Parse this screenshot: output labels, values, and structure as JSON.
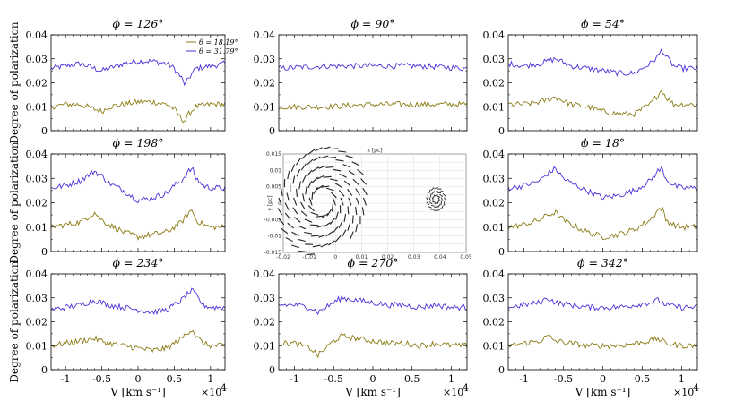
{
  "figure": {
    "ylabel": "Degree of polarization",
    "xlabel": "V [km s⁻¹]",
    "x_exponent": "×10",
    "x_exponent_power": "4",
    "colors": {
      "high": "#4b2fd8",
      "low": "#8b7a13"
    }
  },
  "chart_data": [
    {
      "type": "line",
      "title": "ϕ = 126°",
      "xlabel": "V [km s⁻¹]",
      "ylabel": "Degree of polarization",
      "xlim": [
        -12000,
        12000
      ],
      "ylim": [
        0,
        0.04
      ],
      "xticks": [
        "-1",
        "-0.5",
        "0",
        "0.5",
        "1"
      ],
      "yticks": [
        "0",
        "0.01",
        "0.02",
        "0.03",
        "0.04"
      ],
      "legend": [
        "θ = 18.19°",
        "θ = 31.79°"
      ],
      "x": [
        -12000,
        -10000,
        -8000,
        -6000,
        -5000,
        -4000,
        -2000,
        0,
        2000,
        4000,
        5000,
        5500,
        6000,
        6500,
        7000,
        8000,
        10000,
        12000
      ],
      "series": [
        {
          "name": "θ = 31.79°",
          "values": [
            0.026,
            0.027,
            0.028,
            0.026,
            0.025,
            0.026,
            0.028,
            0.029,
            0.029,
            0.028,
            0.026,
            0.024,
            0.022,
            0.019,
            0.022,
            0.026,
            0.027,
            0.028
          ]
        },
        {
          "name": "θ = 18.19°",
          "values": [
            0.01,
            0.011,
            0.011,
            0.009,
            0.008,
            0.01,
            0.011,
            0.012,
            0.012,
            0.011,
            0.009,
            0.007,
            0.005,
            0.004,
            0.007,
            0.01,
            0.011,
            0.011
          ]
        }
      ]
    },
    {
      "type": "line",
      "title": "ϕ = 90°",
      "xlim": [
        -12000,
        12000
      ],
      "ylim": [
        0,
        0.04
      ],
      "xticks": [
        "-1",
        "-0.5",
        "0",
        "0.5",
        "1"
      ],
      "yticks": [
        "0",
        "0.01",
        "0.02",
        "0.03",
        "0.04"
      ],
      "x": [
        -12000,
        -6000,
        0,
        6000,
        12000
      ],
      "series": [
        {
          "name": "θ = 31.79°",
          "values": [
            0.026,
            0.027,
            0.027,
            0.027,
            0.026
          ]
        },
        {
          "name": "θ = 18.19°",
          "values": [
            0.01,
            0.01,
            0.011,
            0.011,
            0.011
          ]
        }
      ]
    },
    {
      "type": "line",
      "title": "ϕ = 54°",
      "xlim": [
        -12000,
        12000
      ],
      "ylim": [
        0,
        0.04
      ],
      "xticks": [
        "-1",
        "-0.5",
        "0",
        "0.5",
        "1"
      ],
      "yticks": [
        "0",
        "0.01",
        "0.02",
        "0.03",
        "0.04"
      ],
      "x": [
        -12000,
        -10000,
        -8000,
        -6000,
        -4000,
        -2000,
        0,
        2000,
        4000,
        5000,
        6000,
        7000,
        7500,
        8000,
        9000,
        10000,
        12000
      ],
      "series": [
        {
          "name": "θ = 31.79°",
          "values": [
            0.028,
            0.027,
            0.028,
            0.03,
            0.027,
            0.026,
            0.025,
            0.024,
            0.024,
            0.026,
            0.028,
            0.031,
            0.034,
            0.031,
            0.027,
            0.026,
            0.026
          ]
        },
        {
          "name": "θ = 18.19°",
          "values": [
            0.011,
            0.011,
            0.012,
            0.014,
            0.011,
            0.01,
            0.008,
            0.007,
            0.007,
            0.009,
            0.011,
            0.015,
            0.017,
            0.014,
            0.011,
            0.011,
            0.011
          ]
        }
      ]
    },
    {
      "type": "line",
      "title": "ϕ = 198°",
      "xlim": [
        -12000,
        12000
      ],
      "ylim": [
        0,
        0.04
      ],
      "xticks": [
        "-1",
        "-0.5",
        "0",
        "0.5",
        "1"
      ],
      "yticks": [
        "0",
        "0.01",
        "0.02",
        "0.03",
        "0.04"
      ],
      "x": [
        -12000,
        -10000,
        -8000,
        -7000,
        -6000,
        -5000,
        -4000,
        -2000,
        0,
        2000,
        4000,
        5000,
        6000,
        7000,
        7500,
        8000,
        9000,
        10000,
        12000
      ],
      "series": [
        {
          "name": "θ = 31.79°",
          "values": [
            0.026,
            0.027,
            0.029,
            0.031,
            0.033,
            0.031,
            0.028,
            0.025,
            0.021,
            0.022,
            0.024,
            0.027,
            0.029,
            0.033,
            0.034,
            0.03,
            0.027,
            0.026,
            0.026
          ]
        },
        {
          "name": "θ = 18.19°",
          "values": [
            0.01,
            0.011,
            0.012,
            0.014,
            0.016,
            0.013,
            0.011,
            0.008,
            0.006,
            0.007,
            0.008,
            0.01,
            0.012,
            0.016,
            0.017,
            0.013,
            0.011,
            0.01,
            0.01
          ]
        }
      ]
    },
    {
      "type": "scatter",
      "title": "",
      "xlabel": "x [pc]",
      "ylabel": "y [pc]",
      "xlim": [
        -0.02,
        0.05
      ],
      "ylim": [
        -0.015,
        0.015
      ],
      "xticks": [
        "-0.02",
        "-0.01",
        "0",
        "0.01",
        "0.02",
        "0.03",
        "0.04",
        "0.05"
      ],
      "yticks": [
        "0.015",
        "0.01",
        "0.005",
        "0",
        "-0.005",
        "-0.01",
        "-0.015"
      ]
    },
    {
      "type": "line",
      "title": "ϕ = 18°",
      "xlim": [
        -12000,
        12000
      ],
      "ylim": [
        0,
        0.04
      ],
      "xticks": [
        "-1",
        "-0.5",
        "0",
        "0.5",
        "1"
      ],
      "yticks": [
        "0",
        "0.01",
        "0.02",
        "0.03",
        "0.04"
      ],
      "x": [
        -12000,
        -10000,
        -8000,
        -7000,
        -6000,
        -5000,
        -4000,
        -2000,
        0,
        2000,
        4000,
        5000,
        6000,
        7000,
        7500,
        8000,
        9000,
        10000,
        12000
      ],
      "series": [
        {
          "name": "θ = 31.79°",
          "values": [
            0.026,
            0.027,
            0.029,
            0.032,
            0.034,
            0.03,
            0.028,
            0.025,
            0.022,
            0.023,
            0.025,
            0.027,
            0.029,
            0.033,
            0.034,
            0.03,
            0.027,
            0.026,
            0.026
          ]
        },
        {
          "name": "θ = 18.19°",
          "values": [
            0.01,
            0.011,
            0.013,
            0.015,
            0.016,
            0.013,
            0.011,
            0.008,
            0.006,
            0.007,
            0.009,
            0.011,
            0.013,
            0.017,
            0.018,
            0.013,
            0.011,
            0.01,
            0.01
          ]
        }
      ]
    },
    {
      "type": "line",
      "title": "ϕ = 234°",
      "xlim": [
        -12000,
        12000
      ],
      "ylim": [
        0,
        0.04
      ],
      "xticks": [
        "-1",
        "-0.5",
        "0",
        "0.5",
        "1"
      ],
      "yticks": [
        "0",
        "0.01",
        "0.02",
        "0.03",
        "0.04"
      ],
      "x": [
        -12000,
        -10000,
        -8000,
        -6000,
        -5000,
        -4000,
        -2000,
        0,
        2000,
        4000,
        5000,
        6000,
        7000,
        7500,
        8000,
        9000,
        10000,
        12000
      ],
      "series": [
        {
          "name": "θ = 31.79°",
          "values": [
            0.025,
            0.026,
            0.027,
            0.029,
            0.028,
            0.027,
            0.026,
            0.025,
            0.024,
            0.025,
            0.027,
            0.029,
            0.032,
            0.033,
            0.031,
            0.027,
            0.026,
            0.026
          ]
        },
        {
          "name": "θ = 18.19°",
          "values": [
            0.01,
            0.011,
            0.012,
            0.013,
            0.012,
            0.011,
            0.01,
            0.009,
            0.008,
            0.009,
            0.011,
            0.013,
            0.016,
            0.017,
            0.014,
            0.011,
            0.01,
            0.01
          ]
        }
      ]
    },
    {
      "type": "line",
      "title": "ϕ = 270°",
      "xlim": [
        -12000,
        12000
      ],
      "ylim": [
        0,
        0.04
      ],
      "xticks": [
        "-1",
        "-0.5",
        "0",
        "0.5",
        "1"
      ],
      "yticks": [
        "0",
        "0.01",
        "0.02",
        "0.03",
        "0.04"
      ],
      "x": [
        -12000,
        -10000,
        -8000,
        -7000,
        -6000,
        -5000,
        -4000,
        -2000,
        0,
        2000,
        4000,
        6000,
        8000,
        10000,
        12000
      ],
      "series": [
        {
          "name": "θ = 31.79°",
          "values": [
            0.027,
            0.027,
            0.026,
            0.024,
            0.026,
            0.028,
            0.03,
            0.029,
            0.028,
            0.027,
            0.027,
            0.026,
            0.027,
            0.026,
            0.026
          ]
        },
        {
          "name": "θ = 18.19°",
          "values": [
            0.011,
            0.011,
            0.009,
            0.006,
            0.009,
            0.012,
            0.014,
            0.013,
            0.012,
            0.011,
            0.011,
            0.01,
            0.011,
            0.01,
            0.01
          ]
        }
      ]
    },
    {
      "type": "line",
      "title": "ϕ = 342°",
      "xlim": [
        -12000,
        12000
      ],
      "ylim": [
        0,
        0.04
      ],
      "xticks": [
        "-1",
        "-0.5",
        "0",
        "0.5",
        "1"
      ],
      "yticks": [
        "0",
        "0.01",
        "0.02",
        "0.03",
        "0.04"
      ],
      "x": [
        -12000,
        -10000,
        -8000,
        -7000,
        -6000,
        -4000,
        -2000,
        0,
        2000,
        4000,
        6000,
        7000,
        8000,
        10000,
        12000
      ],
      "series": [
        {
          "name": "θ = 31.79°",
          "values": [
            0.026,
            0.027,
            0.028,
            0.03,
            0.028,
            0.027,
            0.026,
            0.026,
            0.026,
            0.027,
            0.028,
            0.029,
            0.027,
            0.026,
            0.026
          ]
        },
        {
          "name": "θ = 18.19°",
          "values": [
            0.01,
            0.011,
            0.012,
            0.014,
            0.012,
            0.011,
            0.01,
            0.01,
            0.01,
            0.011,
            0.012,
            0.013,
            0.011,
            0.01,
            0.01
          ]
        }
      ]
    }
  ]
}
